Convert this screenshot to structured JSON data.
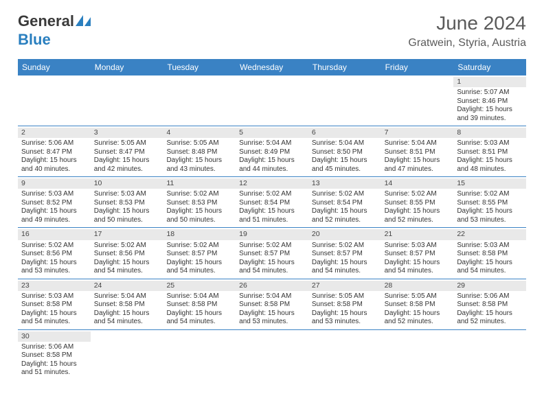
{
  "logo": {
    "general": "General",
    "blue": "Blue"
  },
  "title": "June 2024",
  "location": "Gratwein, Styria, Austria",
  "colors": {
    "header_bg": "#3a82c4",
    "header_text": "#ffffff",
    "daynum_bg": "#e9e9e9",
    "border": "#3a82c4",
    "logo_blue": "#2a7fbf",
    "text": "#333333"
  },
  "weekdays": [
    "Sunday",
    "Monday",
    "Tuesday",
    "Wednesday",
    "Thursday",
    "Friday",
    "Saturday"
  ],
  "weeks": [
    [
      {
        "day": "",
        "sunrise": "",
        "sunset": "",
        "daylight": ""
      },
      {
        "day": "",
        "sunrise": "",
        "sunset": "",
        "daylight": ""
      },
      {
        "day": "",
        "sunrise": "",
        "sunset": "",
        "daylight": ""
      },
      {
        "day": "",
        "sunrise": "",
        "sunset": "",
        "daylight": ""
      },
      {
        "day": "",
        "sunrise": "",
        "sunset": "",
        "daylight": ""
      },
      {
        "day": "",
        "sunrise": "",
        "sunset": "",
        "daylight": ""
      },
      {
        "day": "1",
        "sunrise": "Sunrise: 5:07 AM",
        "sunset": "Sunset: 8:46 PM",
        "daylight": "Daylight: 15 hours and 39 minutes."
      }
    ],
    [
      {
        "day": "2",
        "sunrise": "Sunrise: 5:06 AM",
        "sunset": "Sunset: 8:47 PM",
        "daylight": "Daylight: 15 hours and 40 minutes."
      },
      {
        "day": "3",
        "sunrise": "Sunrise: 5:05 AM",
        "sunset": "Sunset: 8:47 PM",
        "daylight": "Daylight: 15 hours and 42 minutes."
      },
      {
        "day": "4",
        "sunrise": "Sunrise: 5:05 AM",
        "sunset": "Sunset: 8:48 PM",
        "daylight": "Daylight: 15 hours and 43 minutes."
      },
      {
        "day": "5",
        "sunrise": "Sunrise: 5:04 AM",
        "sunset": "Sunset: 8:49 PM",
        "daylight": "Daylight: 15 hours and 44 minutes."
      },
      {
        "day": "6",
        "sunrise": "Sunrise: 5:04 AM",
        "sunset": "Sunset: 8:50 PM",
        "daylight": "Daylight: 15 hours and 45 minutes."
      },
      {
        "day": "7",
        "sunrise": "Sunrise: 5:04 AM",
        "sunset": "Sunset: 8:51 PM",
        "daylight": "Daylight: 15 hours and 47 minutes."
      },
      {
        "day": "8",
        "sunrise": "Sunrise: 5:03 AM",
        "sunset": "Sunset: 8:51 PM",
        "daylight": "Daylight: 15 hours and 48 minutes."
      }
    ],
    [
      {
        "day": "9",
        "sunrise": "Sunrise: 5:03 AM",
        "sunset": "Sunset: 8:52 PM",
        "daylight": "Daylight: 15 hours and 49 minutes."
      },
      {
        "day": "10",
        "sunrise": "Sunrise: 5:03 AM",
        "sunset": "Sunset: 8:53 PM",
        "daylight": "Daylight: 15 hours and 50 minutes."
      },
      {
        "day": "11",
        "sunrise": "Sunrise: 5:02 AM",
        "sunset": "Sunset: 8:53 PM",
        "daylight": "Daylight: 15 hours and 50 minutes."
      },
      {
        "day": "12",
        "sunrise": "Sunrise: 5:02 AM",
        "sunset": "Sunset: 8:54 PM",
        "daylight": "Daylight: 15 hours and 51 minutes."
      },
      {
        "day": "13",
        "sunrise": "Sunrise: 5:02 AM",
        "sunset": "Sunset: 8:54 PM",
        "daylight": "Daylight: 15 hours and 52 minutes."
      },
      {
        "day": "14",
        "sunrise": "Sunrise: 5:02 AM",
        "sunset": "Sunset: 8:55 PM",
        "daylight": "Daylight: 15 hours and 52 minutes."
      },
      {
        "day": "15",
        "sunrise": "Sunrise: 5:02 AM",
        "sunset": "Sunset: 8:55 PM",
        "daylight": "Daylight: 15 hours and 53 minutes."
      }
    ],
    [
      {
        "day": "16",
        "sunrise": "Sunrise: 5:02 AM",
        "sunset": "Sunset: 8:56 PM",
        "daylight": "Daylight: 15 hours and 53 minutes."
      },
      {
        "day": "17",
        "sunrise": "Sunrise: 5:02 AM",
        "sunset": "Sunset: 8:56 PM",
        "daylight": "Daylight: 15 hours and 54 minutes."
      },
      {
        "day": "18",
        "sunrise": "Sunrise: 5:02 AM",
        "sunset": "Sunset: 8:57 PM",
        "daylight": "Daylight: 15 hours and 54 minutes."
      },
      {
        "day": "19",
        "sunrise": "Sunrise: 5:02 AM",
        "sunset": "Sunset: 8:57 PM",
        "daylight": "Daylight: 15 hours and 54 minutes."
      },
      {
        "day": "20",
        "sunrise": "Sunrise: 5:02 AM",
        "sunset": "Sunset: 8:57 PM",
        "daylight": "Daylight: 15 hours and 54 minutes."
      },
      {
        "day": "21",
        "sunrise": "Sunrise: 5:03 AM",
        "sunset": "Sunset: 8:57 PM",
        "daylight": "Daylight: 15 hours and 54 minutes."
      },
      {
        "day": "22",
        "sunrise": "Sunrise: 5:03 AM",
        "sunset": "Sunset: 8:58 PM",
        "daylight": "Daylight: 15 hours and 54 minutes."
      }
    ],
    [
      {
        "day": "23",
        "sunrise": "Sunrise: 5:03 AM",
        "sunset": "Sunset: 8:58 PM",
        "daylight": "Daylight: 15 hours and 54 minutes."
      },
      {
        "day": "24",
        "sunrise": "Sunrise: 5:04 AM",
        "sunset": "Sunset: 8:58 PM",
        "daylight": "Daylight: 15 hours and 54 minutes."
      },
      {
        "day": "25",
        "sunrise": "Sunrise: 5:04 AM",
        "sunset": "Sunset: 8:58 PM",
        "daylight": "Daylight: 15 hours and 54 minutes."
      },
      {
        "day": "26",
        "sunrise": "Sunrise: 5:04 AM",
        "sunset": "Sunset: 8:58 PM",
        "daylight": "Daylight: 15 hours and 53 minutes."
      },
      {
        "day": "27",
        "sunrise": "Sunrise: 5:05 AM",
        "sunset": "Sunset: 8:58 PM",
        "daylight": "Daylight: 15 hours and 53 minutes."
      },
      {
        "day": "28",
        "sunrise": "Sunrise: 5:05 AM",
        "sunset": "Sunset: 8:58 PM",
        "daylight": "Daylight: 15 hours and 52 minutes."
      },
      {
        "day": "29",
        "sunrise": "Sunrise: 5:06 AM",
        "sunset": "Sunset: 8:58 PM",
        "daylight": "Daylight: 15 hours and 52 minutes."
      }
    ],
    [
      {
        "day": "30",
        "sunrise": "Sunrise: 5:06 AM",
        "sunset": "Sunset: 8:58 PM",
        "daylight": "Daylight: 15 hours and 51 minutes."
      },
      {
        "day": "",
        "sunrise": "",
        "sunset": "",
        "daylight": ""
      },
      {
        "day": "",
        "sunrise": "",
        "sunset": "",
        "daylight": ""
      },
      {
        "day": "",
        "sunrise": "",
        "sunset": "",
        "daylight": ""
      },
      {
        "day": "",
        "sunrise": "",
        "sunset": "",
        "daylight": ""
      },
      {
        "day": "",
        "sunrise": "",
        "sunset": "",
        "daylight": ""
      },
      {
        "day": "",
        "sunrise": "",
        "sunset": "",
        "daylight": ""
      }
    ]
  ]
}
